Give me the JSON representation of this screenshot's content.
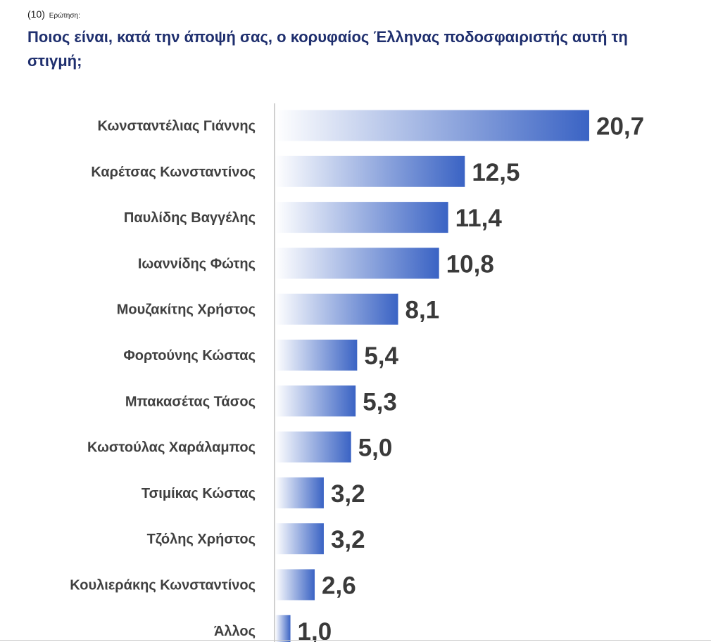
{
  "header": {
    "question_number": "(10)",
    "question_label": "Ερώτηση:",
    "title": "Ποιος είναι, κατά την άποψή σας, ο κορυφαίος Έλληνας ποδοσφαιριστής αυτή τη στιγμή;"
  },
  "chart_data": {
    "type": "bar",
    "orientation": "horizontal",
    "title": "Ποιος είναι, κατά την άποψή σας, ο κορυφαίος Έλληνας ποδοσφαιριστής αυτή τη στιγμή;",
    "categories": [
      "Κωνσταντέλιας Γιάννης",
      "Καρέτσας Κωνσταντίνος",
      "Παυλίδης Βαγγέλης",
      "Ιωαννίδης Φώτης",
      "Μουζακίτης Χρήστος",
      "Φορτούνης Κώστας",
      "Μπακασέτας Τάσος",
      "Κωστούλας Χαράλαμπος",
      "Τσιμίκας Κώστας",
      "Τζόλης Χρήστος",
      "Κουλιεράκης Κωνσταντίνος",
      "Άλλος"
    ],
    "values": [
      20.7,
      12.5,
      11.4,
      10.8,
      8.1,
      5.4,
      5.3,
      5.0,
      3.2,
      3.2,
      2.6,
      1.0
    ],
    "value_labels": [
      "20,7",
      "12,5",
      "11,4",
      "10,8",
      "8,1",
      "5,4",
      "5,3",
      "5,0",
      "3,2",
      "3,2",
      "2,6",
      "1,0"
    ],
    "xlim": [
      0,
      20.7
    ],
    "colors": {
      "bar_start": "#ffffff",
      "bar_end": "#3a63c4",
      "label": "#404040",
      "value": "#3a3a3a",
      "axis": "#d0d0d0"
    }
  }
}
